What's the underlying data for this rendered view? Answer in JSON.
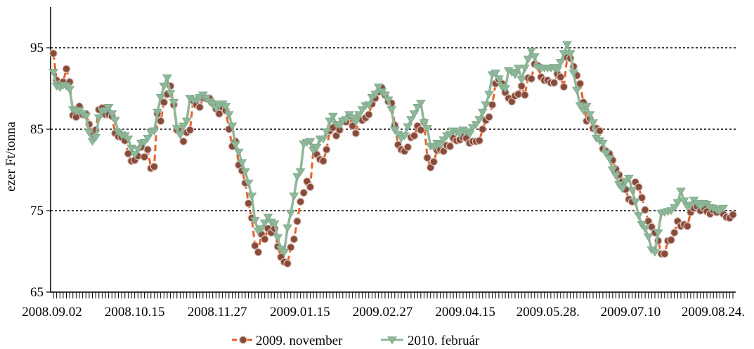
{
  "chart_data": {
    "type": "line",
    "ylabel": "ezer Ft/tonna",
    "xlabel": "",
    "ylim": [
      65,
      100
    ],
    "yticks": [
      65,
      75,
      85,
      95
    ],
    "x_tick_labels": [
      "2008.09.02",
      "2008.10.15",
      "2008.11.27",
      "2009.01.15",
      "2009.02.27",
      "2009.04.15",
      "2009.05.28.",
      "2009.07.10",
      "2009.08.24."
    ],
    "grid": "horizontal dotted at 75, 85, 95",
    "legend_position": "bottom-center",
    "series": [
      {
        "name": "2009. november",
        "color": "#e8602c",
        "marker_color": "#8a4a3a",
        "marker": "circle",
        "line_style": "dashed",
        "values": [
          94.3,
          91.0,
          90.5,
          90.8,
          92.4,
          90.8,
          86.7,
          86.5,
          87.8,
          86.8,
          86.9,
          85.6,
          84.4,
          84.9,
          87.4,
          87.6,
          86.8,
          86.8,
          86.6,
          84.5,
          84.1,
          84.0,
          83.6,
          82.0,
          81.1,
          81.2,
          81.7,
          82.8,
          81.6,
          82.5,
          80.2,
          80.4,
          86.9,
          86.0,
          88.3,
          89.3,
          90.3,
          88.0,
          84.9,
          84.8,
          83.5,
          84.6,
          84.9,
          88.5,
          88.0,
          87.7,
          88.8,
          88.8,
          88.8,
          88.2,
          87.5,
          86.9,
          87.7,
          87.3,
          85.0,
          82.9,
          83.5,
          80.6,
          79.9,
          78.4,
          75.9,
          74.1,
          70.7,
          69.9,
          72.1,
          71.5,
          72.8,
          72.3,
          72.8,
          70.6,
          69.3,
          68.7,
          68.5,
          70.5,
          71.5,
          73.7,
          76.1,
          77.2,
          78.6,
          77.9,
          82.7,
          81.9,
          81.3,
          81.1,
          82.5,
          84.8,
          85.2,
          84.2,
          84.9,
          86.0,
          85.9,
          86.6,
          85.4,
          84.5,
          86.3,
          86.1,
          86.4,
          86.8,
          88.1,
          88.8,
          89.6,
          90.1,
          89.2,
          88.4,
          88.2,
          85.5,
          83.1,
          82.5,
          82.3,
          82.8,
          84.0,
          84.2,
          85.4,
          84.9,
          85.9,
          81.5,
          80.3,
          81.0,
          82.4,
          82.5,
          82.3,
          83.0,
          82.9,
          83.9,
          83.6,
          83.7,
          84.0,
          83.9,
          83.3,
          83.5,
          83.5,
          83.6,
          85.0,
          86.1,
          86.5,
          88.0,
          90.6,
          91.1,
          90.6,
          89.5,
          88.8,
          88.4,
          89.1,
          89.3,
          90.3,
          89.2,
          91.3,
          91.2,
          93.0,
          92.8,
          91.4,
          91.0,
          91.0,
          90.7,
          90.7,
          91.8,
          91.4,
          90.2,
          93.8,
          93.7,
          92.7,
          91.6,
          90.6,
          88.3,
          86.0,
          86.3,
          85.1,
          85.1,
          84.8,
          82.6,
          82.3,
          82.0,
          81.2,
          80.1,
          79.4,
          78.6,
          77.6,
          76.4,
          76.1,
          78.5,
          77.9,
          76.6,
          75.1,
          73.7,
          73.0,
          72.3,
          71.3,
          69.7,
          69.7,
          71.3,
          71.4,
          72.3,
          73.7,
          73.1,
          73.3,
          73.1,
          74.8,
          75.3,
          75.5,
          75.0,
          75.4,
          74.9,
          74.6,
          75.0,
          74.8,
          75.1,
          74.6,
          74.2,
          74.1,
          74.5
        ]
      },
      {
        "name": "2010. február",
        "color": "#8fb89a",
        "marker_color": "#8fb89a",
        "marker": "triangle-down",
        "line_style": "solid",
        "values": [
          92.0,
          90.3,
          90.1,
          90.4,
          90.3,
          89.9,
          87.4,
          87.2,
          87.3,
          86.9,
          86.6,
          84.6,
          83.5,
          84.0,
          86.4,
          87.2,
          87.3,
          87.7,
          86.9,
          86.1,
          84.6,
          84.3,
          84.2,
          83.8,
          82.7,
          81.9,
          82.5,
          83.3,
          83.4,
          83.9,
          84.6,
          84.8,
          87.1,
          88.9,
          90.3,
          91.3,
          89.4,
          88.3,
          85.1,
          84.3,
          85.4,
          86.0,
          88.8,
          88.6,
          88.6,
          88.9,
          89.2,
          88.8,
          88.4,
          88.1,
          87.6,
          88.0,
          88.1,
          87.8,
          86.8,
          85.4,
          83.1,
          82.2,
          80.9,
          79.8,
          78.4,
          76.8,
          73.8,
          72.5,
          72.8,
          73.5,
          74.2,
          73.6,
          73.4,
          71.7,
          70.3,
          69.9,
          72.9,
          74.7,
          76.8,
          79.2,
          79.8,
          83.2,
          83.4,
          83.5,
          82.4,
          82.8,
          83.8,
          83.8,
          84.7,
          86.0,
          86.6,
          85.6,
          85.5,
          86.0,
          86.2,
          86.8,
          86.4,
          85.9,
          86.8,
          87.4,
          87.9,
          88.0,
          88.9,
          89.3,
          90.2,
          89.6,
          89.2,
          88.6,
          87.4,
          84.9,
          84.4,
          83.9,
          84.2,
          85.3,
          86.2,
          86.9,
          87.7,
          88.2,
          85.8,
          85.1,
          82.9,
          82.8,
          83.3,
          83.1,
          83.7,
          84.2,
          84.4,
          84.8,
          84.7,
          84.4,
          84.9,
          84.7,
          84.4,
          85.2,
          85.6,
          86.2,
          87.1,
          88.0,
          89.3,
          91.7,
          91.9,
          91.2,
          90.2,
          90.0,
          92.2,
          92.0,
          91.7,
          92.5,
          91.1,
          92.5,
          93.6,
          94.6,
          93.9,
          92.6,
          92.5,
          92.5,
          92.5,
          92.5,
          92.6,
          92.3,
          93.2,
          94.3,
          95.4,
          94.3,
          91.9,
          89.8,
          87.9,
          87.3,
          87.8,
          86.8,
          85.8,
          83.9,
          83.6,
          83.3,
          82.0,
          81.4,
          80.0,
          79.3,
          78.2,
          77.7,
          78.6,
          79.0,
          77.5,
          76.1,
          74.4,
          73.3,
          72.8,
          71.8,
          70.2,
          69.9,
          72.3,
          74.7,
          74.8,
          74.9,
          75.0,
          75.4,
          76.0,
          77.4,
          76.2,
          75.5,
          75.7,
          76.3,
          75.9,
          75.5,
          75.9,
          75.8,
          75.4,
          75.3,
          75.1,
          75.0,
          75.3
        ]
      }
    ]
  }
}
